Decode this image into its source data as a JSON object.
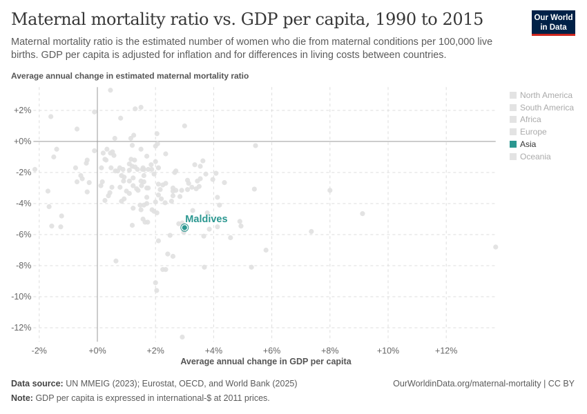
{
  "header": {
    "title": "Maternal mortality ratio vs. GDP per capita, 1990 to 2015",
    "subtitle": "Maternal mortality ratio is the estimated number of women who die from maternal conditions per 100,000 live births. GDP per capita is adjusted for inflation and for differences in living costs between countries.",
    "logo": "Our World in Data"
  },
  "legend": {
    "items": [
      {
        "label": "North America",
        "active": false
      },
      {
        "label": "South America",
        "active": false
      },
      {
        "label": "Africa",
        "active": false
      },
      {
        "label": "Europe",
        "active": false
      },
      {
        "label": "Asia",
        "active": true
      },
      {
        "label": "Oceania",
        "active": false
      }
    ]
  },
  "footer": {
    "source_label": "Data source:",
    "source": "UN MMEIG (2023); Eurostat, OECD, and World Bank (2025)",
    "note_label": "Note:",
    "note": "GDP per capita is expressed in international-$ at 2011 prices.",
    "link": "OurWorldinData.org/maternal-mortality | CC BY"
  },
  "colors": {
    "highlight": "#2b9790",
    "muted": "#e0e0e0",
    "logo_bg": "#002147",
    "logo_bar": "#ce261e"
  },
  "chart_data": {
    "type": "scatter",
    "xlabel": "Average annual change in GDP per capita",
    "ylabel": "Average annual change in estimated maternal mortality ratio",
    "xlim": [
      -2.2,
      13.7
    ],
    "ylim": [
      -12.9,
      3.5
    ],
    "xticks": [
      -2,
      0,
      2,
      4,
      6,
      8,
      10,
      12
    ],
    "xtick_labels": [
      "-2%",
      "+0%",
      "+2%",
      "+4%",
      "+6%",
      "+8%",
      "+10%",
      "+12%"
    ],
    "yticks": [
      2,
      0,
      -2,
      -4,
      -6,
      -8,
      -10,
      -12
    ],
    "ytick_labels": [
      "+2%",
      "+0%",
      "-2%",
      "-4%",
      "-6%",
      "-8%",
      "-10%",
      "-12%"
    ],
    "grid": true,
    "highlight": {
      "label": "Maldives",
      "x": 3.0,
      "y": -5.55,
      "region": "Asia"
    },
    "points": [
      [
        0.45,
        3.3
      ],
      [
        -0.1,
        1.9
      ],
      [
        -1.6,
        1.6
      ],
      [
        1.3,
        2.1
      ],
      [
        1.5,
        2.2
      ],
      [
        0.8,
        1.5
      ],
      [
        -0.7,
        0.8
      ],
      [
        0.6,
        0.2
      ],
      [
        1.15,
        0.2
      ],
      [
        1.25,
        0.4
      ],
      [
        2.05,
        0.5
      ],
      [
        -1.4,
        -0.5
      ],
      [
        -1.5,
        -1.0
      ],
      [
        -0.1,
        -0.6
      ],
      [
        0.2,
        -0.75
      ],
      [
        0.33,
        -0.5
      ],
      [
        0.45,
        -0.75
      ],
      [
        0.52,
        -0.67
      ],
      [
        0.57,
        -0.9
      ],
      [
        1.2,
        -0.25
      ],
      [
        1.5,
        -0.5
      ],
      [
        1.7,
        -0.95
      ],
      [
        2.0,
        -0.3
      ],
      [
        -2.15,
        -1.8
      ],
      [
        -0.75,
        -1.7
      ],
      [
        -0.35,
        -1.2
      ],
      [
        -0.38,
        -1.4
      ],
      [
        0.26,
        -1.15
      ],
      [
        0.3,
        -1.2
      ],
      [
        0.14,
        -1.7
      ],
      [
        0.47,
        -1.7
      ],
      [
        1.16,
        -1.15
      ],
      [
        1.28,
        -1.2
      ],
      [
        1.1,
        -1.45
      ],
      [
        1.2,
        -1.6
      ],
      [
        1.3,
        -1.65
      ],
      [
        1.38,
        -1.8
      ],
      [
        1.57,
        -1.7
      ],
      [
        1.6,
        -1.8
      ],
      [
        1.55,
        -1.8
      ],
      [
        1.75,
        -1.8
      ],
      [
        1.85,
        -1.5
      ],
      [
        1.87,
        -1.8
      ],
      [
        2.0,
        -1.3
      ],
      [
        1.95,
        -2.1
      ],
      [
        2.1,
        -1.7
      ],
      [
        0.62,
        -1.9
      ],
      [
        0.7,
        -1.9
      ],
      [
        0.77,
        -1.7
      ],
      [
        0.88,
        -1.8
      ],
      [
        1.1,
        -1.85
      ],
      [
        0.83,
        -2.2
      ],
      [
        0.92,
        -2.3
      ],
      [
        0.9,
        -2.55
      ],
      [
        1.1,
        -2.55
      ],
      [
        1.23,
        -2.35
      ],
      [
        1.23,
        -2.85
      ],
      [
        1.5,
        -2.55
      ],
      [
        1.6,
        -2.6
      ],
      [
        1.6,
        -2.2
      ],
      [
        1.52,
        -2.85
      ],
      [
        1.7,
        -3.0
      ],
      [
        1.75,
        -3.0
      ],
      [
        1.35,
        -3.05
      ],
      [
        1.4,
        -3.15
      ],
      [
        1.0,
        -3.2
      ],
      [
        1.1,
        -3.35
      ],
      [
        0.78,
        -2.95
      ],
      [
        0.5,
        -2.95
      ],
      [
        0.17,
        -2.6
      ],
      [
        0.12,
        -2.85
      ],
      [
        -0.7,
        -2.6
      ],
      [
        -0.57,
        -2.2
      ],
      [
        -0.52,
        -2.4
      ],
      [
        -0.28,
        -2.65
      ],
      [
        -0.35,
        -3.25
      ],
      [
        -1.7,
        -3.2
      ],
      [
        0.43,
        -3.3
      ],
      [
        0.38,
        -3.5
      ],
      [
        0.26,
        -3.8
      ],
      [
        0.83,
        -3.85
      ],
      [
        0.92,
        -3.7
      ],
      [
        1.23,
        -4.3
      ],
      [
        1.47,
        -4.1
      ],
      [
        1.5,
        -4.4
      ],
      [
        1.7,
        -3.6
      ],
      [
        1.7,
        -4.0
      ],
      [
        1.6,
        -4.1
      ],
      [
        2.0,
        -3.9
      ],
      [
        1.88,
        -4.4
      ],
      [
        1.95,
        -4.5
      ],
      [
        2.05,
        -4.6
      ],
      [
        2.1,
        -3.45
      ],
      [
        -1.66,
        -4.2
      ],
      [
        -1.23,
        -4.8
      ],
      [
        -1.57,
        -5.45
      ],
      [
        -1.26,
        -5.5
      ],
      [
        1.2,
        -5.4
      ],
      [
        1.57,
        -5.0
      ],
      [
        1.64,
        -5.2
      ],
      [
        1.73,
        -5.2
      ],
      [
        3.0,
        1.0
      ],
      [
        2.07,
        -0.15
      ],
      [
        2.35,
        -0.8
      ],
      [
        2.1,
        -1.7
      ],
      [
        3.35,
        -1.5
      ],
      [
        3.63,
        -1.25
      ],
      [
        2.66,
        -2.0
      ],
      [
        2.7,
        -1.9
      ],
      [
        3.54,
        -1.6
      ],
      [
        3.73,
        -2.1
      ],
      [
        4.08,
        -2.05
      ],
      [
        3.97,
        -2.45
      ],
      [
        4.37,
        -2.65
      ],
      [
        3.1,
        -2.5
      ],
      [
        3.14,
        -2.7
      ],
      [
        3.25,
        -2.95
      ],
      [
        3.4,
        -3.05
      ],
      [
        3.44,
        -2.55
      ],
      [
        3.5,
        -2.9
      ],
      [
        3.54,
        -2.4
      ],
      [
        2.1,
        -2.75
      ],
      [
        2.25,
        -2.8
      ],
      [
        2.35,
        -2.7
      ],
      [
        2.16,
        -3.1
      ],
      [
        2.6,
        -3.0
      ],
      [
        2.6,
        -3.2
      ],
      [
        2.7,
        -3.15
      ],
      [
        2.9,
        -3.15
      ],
      [
        3.1,
        -3.1
      ],
      [
        2.84,
        -3.55
      ],
      [
        2.2,
        -3.7
      ],
      [
        2.33,
        -3.95
      ],
      [
        2.55,
        -3.85
      ],
      [
        2.6,
        -3.5
      ],
      [
        4.13,
        -3.6
      ],
      [
        4.2,
        -4.1
      ],
      [
        5.4,
        -3.07
      ],
      [
        3.28,
        -4.45
      ],
      [
        3.78,
        -4.6
      ],
      [
        2.8,
        -5.3
      ],
      [
        2.92,
        -5.25
      ],
      [
        2.97,
        -5.85
      ],
      [
        3.85,
        -5.65
      ],
      [
        4.13,
        -5.5
      ],
      [
        4.9,
        -5.15
      ],
      [
        4.94,
        -5.45
      ],
      [
        3.66,
        -6.1
      ],
      [
        4.58,
        -6.2
      ],
      [
        2.5,
        -6.05
      ],
      [
        2.1,
        -6.4
      ],
      [
        2.42,
        -7.25
      ],
      [
        2.6,
        -7.4
      ],
      [
        2.25,
        -8.25
      ],
      [
        2.35,
        -8.25
      ],
      [
        3.68,
        -8.1
      ],
      [
        5.3,
        -8.1
      ],
      [
        2.0,
        -9.1
      ],
      [
        2.04,
        -9.6
      ],
      [
        2.92,
        -12.6
      ],
      [
        0.64,
        -7.7
      ],
      [
        5.8,
        -7.0
      ],
      [
        7.36,
        -5.8
      ],
      [
        8.0,
        -3.15
      ],
      [
        9.12,
        -4.65
      ],
      [
        13.7,
        -6.8
      ],
      [
        5.44,
        -0.27
      ]
    ]
  }
}
